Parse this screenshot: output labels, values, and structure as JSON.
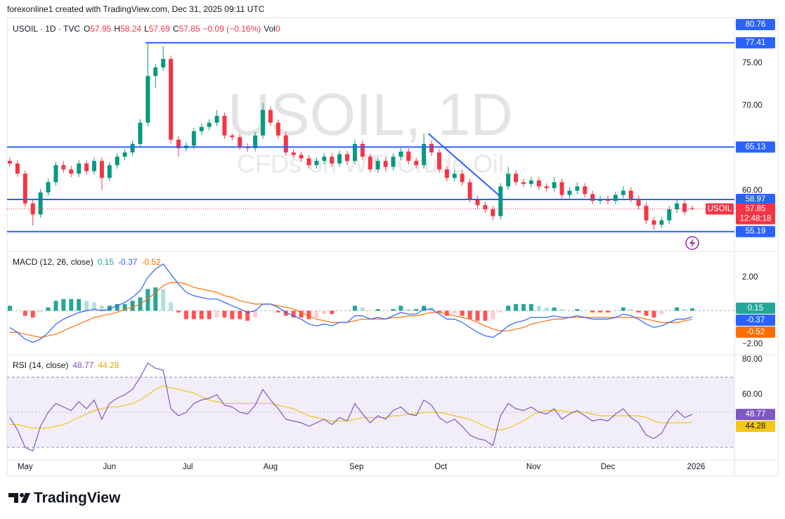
{
  "header": {
    "attribution": "forexonline1 created with TradingView.com, Dec 31, 2025 09:11 UTC"
  },
  "footer": {
    "brand": "TradingView"
  },
  "chart_data": [
    {
      "type": "candlestick",
      "symbol_line": "USOIL · 1D · TVC",
      "ohlc_labels": [
        "O",
        "H",
        "L",
        "C"
      ],
      "change_label": "−0.09 (−0.16%)",
      "volume_label": "Vol",
      "volume": 0,
      "watermark": "USOIL, 1D",
      "watermark_sub": "CFDs on WTI Crude Oil",
      "symbol_tag": "USOIL",
      "countdown": "12:48:18",
      "up_color": "#089981",
      "down_color": "#f23645",
      "level_color": "#2962ff",
      "xlim": [
        0,
        89
      ],
      "xticks": [
        {
          "value": 2,
          "label": "May"
        },
        {
          "value": 13,
          "label": "Jun"
        },
        {
          "value": 23.2,
          "label": "Jul"
        },
        {
          "value": 34,
          "label": "Aug"
        },
        {
          "value": 45.2,
          "label": "Sep"
        },
        {
          "value": 56.2,
          "label": "Oct"
        },
        {
          "value": 68.3,
          "label": "Nov"
        },
        {
          "value": 78,
          "label": "Dec"
        },
        {
          "value": 89.5,
          "label": "2026"
        }
      ],
      "ylim": [
        53.1,
        80.37
      ],
      "yticks": [
        {
          "value": 75,
          "label": "75.00"
        },
        {
          "value": 70,
          "label": "70.00"
        },
        {
          "value": 60,
          "label": "60.00"
        }
      ],
      "top_level": 80.76,
      "levels": [
        {
          "value": 77.41,
          "start": 17.7
        },
        {
          "value": 65.13
        },
        {
          "value": 58.97
        },
        {
          "value": 55.19
        }
      ],
      "trendline": {
        "start": [
          54.6,
          66.7
        ],
        "end": [
          64,
          59.3
        ]
      },
      "candles": [
        [
          63.5,
          63.9,
          62.8,
          63.2
        ],
        [
          63.2,
          63.6,
          61.6,
          62
        ],
        [
          62,
          62.4,
          58.1,
          58.5
        ],
        [
          58.5,
          58.9,
          55.9,
          57.2
        ],
        [
          57.2,
          60.2,
          56.8,
          59.8
        ],
        [
          59.8,
          61.4,
          59.4,
          61
        ],
        [
          61,
          63.4,
          60.6,
          63
        ],
        [
          63,
          63.5,
          62.1,
          62.5
        ],
        [
          62.5,
          62.9,
          61.6,
          62
        ],
        [
          62,
          63.6,
          61.6,
          63.2
        ],
        [
          63.2,
          63.6,
          61.9,
          62.3
        ],
        [
          62.3,
          63.9,
          61.9,
          63.5
        ],
        [
          63.5,
          63.9,
          60.1,
          61.5
        ],
        [
          61.5,
          63.4,
          61.1,
          63
        ],
        [
          63,
          64.4,
          62.6,
          64
        ],
        [
          64,
          64.9,
          63.6,
          64.5
        ],
        [
          64.5,
          65.9,
          64.1,
          65.5
        ],
        [
          65.5,
          68.4,
          65.1,
          68
        ],
        [
          68,
          77.41,
          67.6,
          73.5
        ],
        [
          73.5,
          74.9,
          72.1,
          74.5
        ],
        [
          74.5,
          77,
          74.1,
          75.5
        ],
        [
          75.5,
          75.9,
          65.6,
          66
        ],
        [
          66,
          66.4,
          64,
          65
        ],
        [
          65,
          65.7,
          64.6,
          65.3
        ],
        [
          65.3,
          67.4,
          64.9,
          67
        ],
        [
          67,
          67.9,
          66.6,
          67.5
        ],
        [
          67.5,
          68.4,
          67.1,
          68
        ],
        [
          68,
          69.5,
          67.6,
          68.8
        ],
        [
          68.8,
          69.2,
          66.1,
          66.5
        ],
        [
          66.5,
          66.7,
          65.9,
          66.3
        ],
        [
          66.3,
          66.7,
          64.8,
          65.2
        ],
        [
          65.2,
          65.6,
          64.6,
          65
        ],
        [
          65,
          66.9,
          64.6,
          66.5
        ],
        [
          66.5,
          70.3,
          66.1,
          69.5
        ],
        [
          69.5,
          69.9,
          67.6,
          68
        ],
        [
          68,
          68.4,
          66.1,
          66.5
        ],
        [
          66.5,
          66.9,
          64.1,
          64.5
        ],
        [
          64.5,
          64.9,
          63.8,
          64.2
        ],
        [
          64.2,
          64.6,
          63.4,
          63.8
        ],
        [
          63.8,
          64.2,
          62.6,
          63
        ],
        [
          63,
          63.9,
          62.6,
          63.5
        ],
        [
          63.5,
          64.4,
          63.1,
          64
        ],
        [
          64,
          64.4,
          62.8,
          63.2
        ],
        [
          63.2,
          64.7,
          62.8,
          64.3
        ],
        [
          64.3,
          64.7,
          63.1,
          63.5
        ],
        [
          63.5,
          66,
          63.1,
          65.5
        ],
        [
          65.5,
          65.9,
          63.6,
          64
        ],
        [
          64,
          64.4,
          62.1,
          62.5
        ],
        [
          62.5,
          63.9,
          62.1,
          63.5
        ],
        [
          63.5,
          63.9,
          62.4,
          62.8
        ],
        [
          62.8,
          64.4,
          62.4,
          64
        ],
        [
          64,
          65,
          63.6,
          64.6
        ],
        [
          64.6,
          65,
          63.1,
          63.5
        ],
        [
          63.5,
          63.9,
          62.6,
          63
        ],
        [
          63,
          66.7,
          62.6,
          65.5
        ],
        [
          65.5,
          65.9,
          64.1,
          64.5
        ],
        [
          64.5,
          64.9,
          62.1,
          62.5
        ],
        [
          62.5,
          62.9,
          61.1,
          61.5
        ],
        [
          61.5,
          62.4,
          61.1,
          62
        ],
        [
          62,
          62.4,
          60.6,
          61
        ],
        [
          61,
          61.4,
          58.6,
          59
        ],
        [
          59,
          59.4,
          57.9,
          58.3
        ],
        [
          58.3,
          58.7,
          57.4,
          57.8
        ],
        [
          57.8,
          58.2,
          56.5,
          57
        ],
        [
          57,
          60.9,
          56.6,
          60.5
        ],
        [
          60.5,
          62.8,
          60.1,
          62
        ],
        [
          62,
          62.4,
          60.6,
          61
        ],
        [
          61,
          61.4,
          60.4,
          60.8
        ],
        [
          60.8,
          61.6,
          60.4,
          61.2
        ],
        [
          61.2,
          61.6,
          60.1,
          60.5
        ],
        [
          60.5,
          60.9,
          59.9,
          60.3
        ],
        [
          60.3,
          61.6,
          59.9,
          61
        ],
        [
          61,
          61.4,
          59.1,
          59.5
        ],
        [
          59.5,
          60.4,
          59.1,
          60
        ],
        [
          60,
          61,
          59.6,
          60.5
        ],
        [
          60.5,
          60.9,
          59.2,
          59.6
        ],
        [
          59.6,
          60,
          58.4,
          58.8
        ],
        [
          58.8,
          59.4,
          58.4,
          59
        ],
        [
          59,
          59.4,
          58.4,
          58.8
        ],
        [
          58.8,
          59.9,
          58.4,
          59.5
        ],
        [
          59.5,
          60.5,
          59.1,
          60
        ],
        [
          60,
          60.4,
          58.6,
          59
        ],
        [
          59,
          59.4,
          57.8,
          58.2
        ],
        [
          58.2,
          58.6,
          56.1,
          56.5
        ],
        [
          56.5,
          56.9,
          55.4,
          56
        ],
        [
          56,
          56.9,
          55.6,
          56.5
        ],
        [
          56.5,
          58.2,
          56.1,
          57.8
        ],
        [
          57.8,
          58.9,
          57.4,
          58.5
        ],
        [
          58.5,
          58.9,
          57.1,
          57.5
        ],
        [
          57.95,
          58.24,
          57.69,
          57.85
        ]
      ]
    },
    {
      "type": "macd",
      "title": "MACD (12, 26, close)",
      "ylim": [
        -2.42,
        3.26
      ],
      "yticks": [
        {
          "value": 2,
          "label": "2.00"
        },
        {
          "value": -2,
          "label": "−2.00"
        }
      ],
      "macd_color": "#2962ff",
      "signal_color": "#ff6d00",
      "hist_colors": [
        "#26a69a",
        "#b2dfdb",
        "#ffcdd2",
        "#ff5252"
      ],
      "histogram": [
        0.3,
        0,
        -0.3,
        -0.4,
        -0.1,
        0.2,
        0.6,
        0.7,
        0.7,
        0.7,
        0.6,
        0.5,
        0.3,
        0.3,
        0.4,
        0.4,
        0.6,
        0.8,
        1.3,
        1.4,
        1.3,
        0.5,
        -0.1,
        -0.5,
        -0.5,
        -0.5,
        -0.5,
        -0.4,
        -0.4,
        -0.5,
        -0.5,
        -0.6,
        -0.4,
        0,
        0,
        -0.1,
        -0.3,
        -0.4,
        -0.4,
        -0.5,
        -0.4,
        -0.2,
        -0.2,
        0,
        0,
        0.3,
        0.2,
        0,
        0.1,
        0,
        0.1,
        0.3,
        0.1,
        0.1,
        0.3,
        0.2,
        -0.1,
        -0.3,
        -0.2,
        -0.3,
        -0.5,
        -0.6,
        -0.6,
        -0.5,
        -0.1,
        0.3,
        0.4,
        0.4,
        0.4,
        0.3,
        0.2,
        0.2,
        0.1,
        0,
        0.1,
        0,
        -0.1,
        -0.1,
        -0.1,
        0,
        0.2,
        0.1,
        -0.1,
        -0.3,
        -0.4,
        -0.2,
        0,
        0.2,
        0.1,
        0.15
      ],
      "macd": [
        -1.0,
        -1.3,
        -1.7,
        -1.9,
        -1.7,
        -1.3,
        -0.8,
        -0.5,
        -0.3,
        -0.1,
        0,
        0.1,
        0,
        0.1,
        0.3,
        0.5,
        0.8,
        1.2,
        2.0,
        2.5,
        2.8,
        2.2,
        1.6,
        1.1,
        0.9,
        0.8,
        0.7,
        0.7,
        0.5,
        0.3,
        0.1,
        -0.1,
        0,
        0.4,
        0.4,
        0.2,
        -0.1,
        -0.3,
        -0.5,
        -0.8,
        -0.9,
        -0.8,
        -0.9,
        -0.7,
        -0.7,
        -0.3,
        -0.3,
        -0.5,
        -0.4,
        -0.5,
        -0.3,
        -0.1,
        -0.2,
        -0.2,
        0.1,
        0.1,
        -0.2,
        -0.5,
        -0.5,
        -0.7,
        -1.0,
        -1.3,
        -1.5,
        -1.6,
        -1.3,
        -0.9,
        -0.7,
        -0.6,
        -0.4,
        -0.4,
        -0.4,
        -0.3,
        -0.4,
        -0.4,
        -0.3,
        -0.4,
        -0.5,
        -0.5,
        -0.5,
        -0.4,
        -0.2,
        -0.3,
        -0.5,
        -0.8,
        -1.0,
        -0.9,
        -0.7,
        -0.5,
        -0.5,
        -0.37
      ],
      "signal": [
        -1.3,
        -1.3,
        -1.4,
        -1.5,
        -1.6,
        -1.5,
        -1.4,
        -1.2,
        -1.0,
        -0.8,
        -0.6,
        -0.4,
        -0.3,
        -0.2,
        -0.1,
        0.1,
        0.2,
        0.4,
        0.7,
        1.1,
        1.5,
        1.7,
        1.7,
        1.6,
        1.4,
        1.3,
        1.2,
        1.1,
        0.9,
        0.8,
        0.6,
        0.5,
        0.4,
        0.4,
        0.4,
        0.3,
        0.2,
        0.1,
        -0.1,
        -0.3,
        -0.5,
        -0.6,
        -0.7,
        -0.7,
        -0.7,
        -0.6,
        -0.5,
        -0.5,
        -0.5,
        -0.5,
        -0.4,
        -0.4,
        -0.3,
        -0.3,
        -0.2,
        -0.1,
        -0.1,
        -0.2,
        -0.3,
        -0.4,
        -0.5,
        -0.7,
        -0.9,
        -1.1,
        -1.2,
        -1.2,
        -1.1,
        -1.0,
        -0.8,
        -0.7,
        -0.6,
        -0.5,
        -0.5,
        -0.4,
        -0.4,
        -0.4,
        -0.4,
        -0.4,
        -0.4,
        -0.4,
        -0.4,
        -0.4,
        -0.4,
        -0.5,
        -0.6,
        -0.7,
        -0.7,
        -0.7,
        -0.6,
        -0.52
      ]
    },
    {
      "type": "rsi",
      "title": "RSI (14, close)",
      "ylim": [
        24.8,
        80.8
      ],
      "yticks": [
        {
          "value": 80,
          "label": "80.00"
        },
        {
          "value": 60,
          "label": "60.00"
        }
      ],
      "levels": [
        70,
        50,
        30
      ],
      "rsi_color": "#7e57c2",
      "ma_color": "#f5c518",
      "rsi": [
        47,
        40,
        30,
        28,
        42,
        50,
        55,
        53,
        51,
        56,
        52,
        57,
        46,
        55,
        58,
        60,
        63,
        70,
        78,
        75,
        74,
        52,
        48,
        50,
        55,
        57,
        58,
        60,
        54,
        53,
        50,
        49,
        54,
        63,
        57,
        52,
        46,
        45,
        44,
        42,
        44,
        46,
        43,
        47,
        45,
        55,
        49,
        44,
        48,
        46,
        51,
        53,
        49,
        48,
        57,
        54,
        47,
        44,
        46,
        42,
        37,
        35,
        34,
        31,
        48,
        55,
        52,
        51,
        53,
        50,
        49,
        52,
        46,
        49,
        51,
        48,
        45,
        46,
        45,
        49,
        52,
        47,
        44,
        37,
        35,
        38,
        46,
        51,
        47,
        48.77
      ],
      "rsi_ma": [
        43,
        43,
        42,
        41,
        41,
        41,
        42,
        43,
        45,
        47,
        49,
        51,
        52,
        53,
        53,
        54,
        55,
        57,
        60,
        63,
        65,
        64,
        63,
        62,
        61,
        59,
        57,
        56,
        55,
        55,
        55,
        55,
        55,
        55,
        55,
        54,
        53,
        52,
        50,
        48,
        47,
        46,
        45,
        45,
        45,
        46,
        47,
        47,
        47,
        47,
        48,
        48,
        49,
        49,
        50,
        50,
        50,
        49,
        48,
        47,
        46,
        44,
        42,
        40,
        40,
        41,
        43,
        45,
        48,
        50,
        51,
        51,
        51,
        50,
        50,
        50,
        49,
        48,
        48,
        48,
        48,
        48,
        48,
        47,
        45,
        44,
        44,
        44,
        44,
        44.28
      ]
    }
  ]
}
